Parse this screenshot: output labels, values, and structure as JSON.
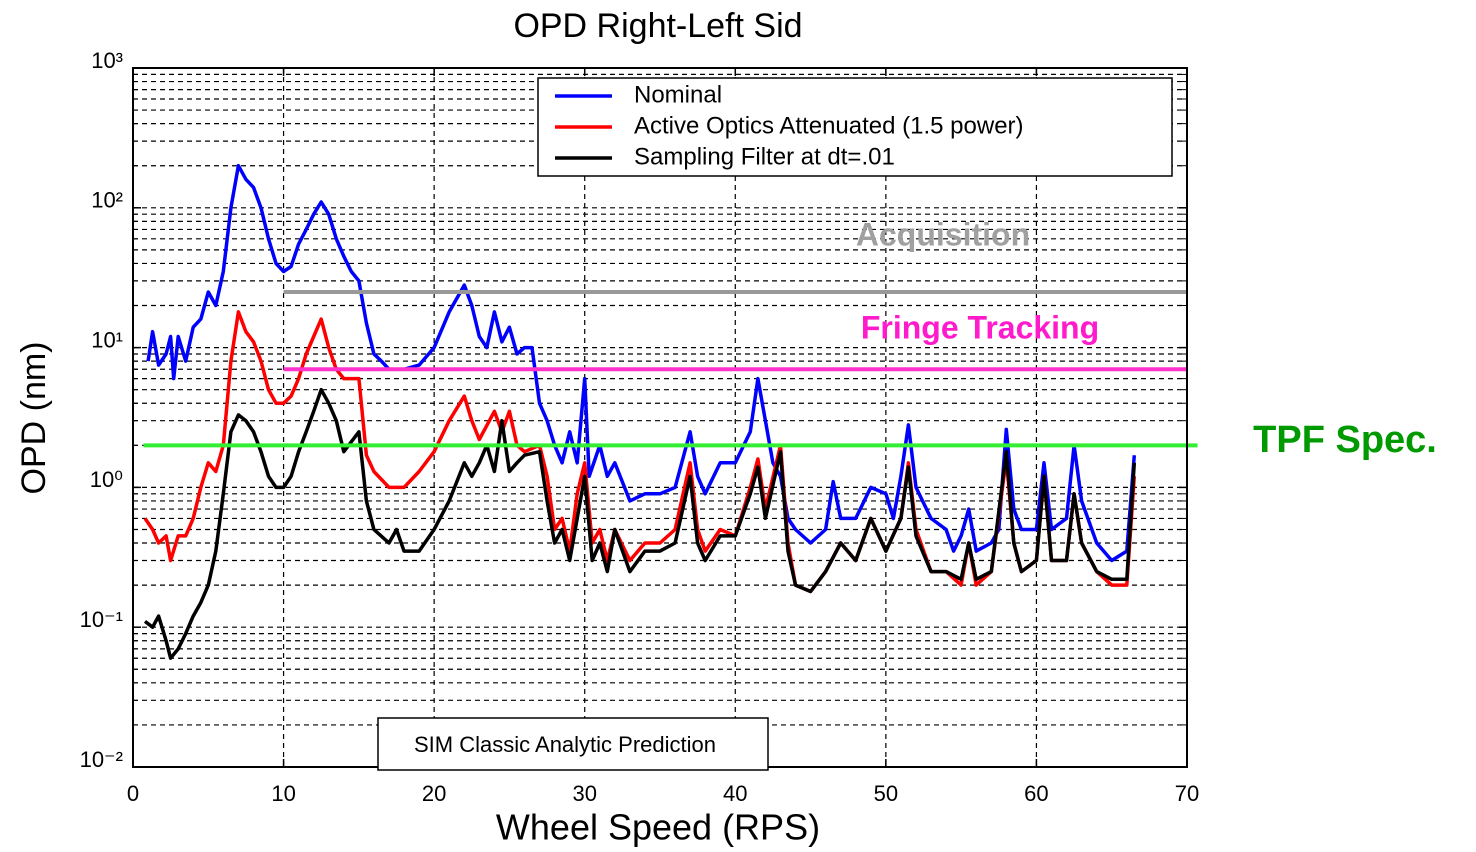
{
  "chart_data": {
    "type": "line",
    "title": "OPD Right-Left Sid",
    "xlabel": "Wheel Speed (RPS)",
    "ylabel": "OPD (nm)",
    "xlim": [
      0,
      70
    ],
    "xticks": [
      0,
      10,
      20,
      30,
      40,
      50,
      60,
      70
    ],
    "ylim": [
      0.01,
      1000
    ],
    "yscale": "log",
    "yticks": [
      {
        "value": 0.01,
        "label": "10⁻²"
      },
      {
        "value": 0.1,
        "label": "10⁻¹"
      },
      {
        "value": 1,
        "label": "10⁰"
      },
      {
        "value": 10,
        "label": "10¹"
      },
      {
        "value": 100,
        "label": "10²"
      },
      {
        "value": 1000,
        "label": "10³"
      }
    ],
    "grid": true,
    "minor_grid": true,
    "legend": "upper right",
    "annotation": "SIM Classic Analytic Prediction",
    "reference_lines": [
      {
        "label": "Acquisition",
        "value": 25,
        "x": [
          10,
          70
        ],
        "color": "#999999",
        "label_color": "#a0a0a0"
      },
      {
        "label": "Fringe Tracking",
        "value": 7,
        "x": [
          10,
          70
        ],
        "color": "#ff33cc",
        "label_color": "#ff1acc"
      },
      {
        "label": "TPF Spec.",
        "value": 2,
        "x": [
          0.7,
          70.7
        ],
        "color": "#33ee33",
        "label_color": "#009900"
      }
    ],
    "series": [
      {
        "name": "Nominal",
        "color": "#0000ff",
        "x": [
          1,
          1.3,
          1.7,
          2.2,
          2.5,
          2.7,
          3,
          3.5,
          4,
          4.5,
          5,
          5.5,
          6,
          6.5,
          7,
          7.5,
          8,
          8.5,
          9,
          9.5,
          10,
          10.5,
          11,
          11.5,
          12,
          12.5,
          13,
          13.5,
          14,
          14.5,
          15,
          15.5,
          16,
          16.5,
          17,
          18,
          19,
          20,
          21,
          22,
          22.5,
          23,
          23.5,
          24,
          24.5,
          25,
          25.5,
          26,
          26.5,
          27,
          27.5,
          28,
          28.5,
          29,
          29.5,
          30,
          30.3,
          31,
          31.5,
          32,
          33,
          34,
          35,
          36,
          37,
          37.5,
          38,
          39,
          40,
          41,
          41.5,
          42,
          42.5,
          43,
          43.5,
          44,
          45,
          46,
          46.5,
          47,
          48,
          49,
          50,
          50.5,
          51,
          51.5,
          52,
          53,
          54,
          54.5,
          55,
          55.5,
          56,
          57,
          57.5,
          58,
          58.5,
          59,
          60,
          60.5,
          61,
          62,
          62.5,
          63,
          64,
          65,
          66,
          66.5
        ],
        "values": [
          8,
          13,
          7.5,
          9,
          12,
          6,
          12,
          8,
          14,
          16,
          25,
          20,
          35,
          100,
          200,
          160,
          140,
          100,
          60,
          40,
          35,
          38,
          55,
          70,
          90,
          110,
          90,
          60,
          45,
          35,
          30,
          15,
          9,
          8,
          7,
          7,
          7.5,
          10,
          18,
          28,
          20,
          12,
          10,
          18,
          11,
          14,
          9,
          10,
          10,
          4,
          3,
          2,
          1.5,
          2.5,
          1.5,
          6,
          1.2,
          2,
          1.2,
          1.5,
          0.8,
          0.9,
          0.9,
          1.0,
          2.5,
          1.2,
          0.9,
          1.5,
          1.5,
          2.5,
          6,
          3,
          1.5,
          1.2,
          0.6,
          0.5,
          0.4,
          0.5,
          1.1,
          0.6,
          0.6,
          1,
          0.9,
          0.6,
          1.2,
          2.8,
          1.0,
          0.6,
          0.5,
          0.35,
          0.45,
          0.7,
          0.35,
          0.4,
          0.5,
          2.6,
          0.7,
          0.5,
          0.5,
          1.5,
          0.5,
          0.6,
          2.0,
          0.8,
          0.4,
          0.3,
          0.35,
          1.7
        ]
      },
      {
        "name": "Active Optics Attenuated (1.5 power)",
        "color": "#ff0000",
        "x": [
          0.8,
          1.3,
          1.7,
          2.2,
          2.5,
          3,
          3.5,
          4,
          4.5,
          5,
          5.5,
          6,
          6.5,
          7,
          7.5,
          8,
          8.5,
          9,
          9.5,
          10,
          10.5,
          11,
          11.5,
          12,
          12.5,
          13,
          13.5,
          14,
          15,
          15.5,
          16,
          17,
          18,
          19,
          20,
          21,
          22,
          22.5,
          23,
          24,
          24.5,
          25,
          25.5,
          26,
          27,
          27.5,
          28,
          28.5,
          29,
          29.5,
          30,
          30.5,
          31,
          31.5,
          32,
          33,
          34,
          35,
          36,
          37,
          37.5,
          38,
          39,
          40,
          41,
          41.5,
          42,
          43,
          43.5,
          44,
          45,
          46,
          47,
          48,
          49,
          50,
          51,
          51.5,
          52,
          53,
          54,
          55,
          55.5,
          56,
          57,
          58,
          58.5,
          59,
          60,
          60.5,
          61,
          62,
          62.5,
          63,
          64,
          65,
          66,
          66.5
        ],
        "values": [
          0.6,
          0.5,
          0.4,
          0.45,
          0.3,
          0.45,
          0.45,
          0.6,
          1.0,
          1.5,
          1.3,
          2,
          8,
          18,
          13,
          11,
          8,
          5,
          4,
          4,
          4.5,
          6,
          9,
          12,
          16,
          10,
          7,
          6,
          6,
          1.7,
          1.3,
          1,
          1,
          1.3,
          1.8,
          3,
          4.5,
          3,
          2.2,
          3.5,
          2.5,
          3.5,
          2,
          1.8,
          2,
          1.2,
          0.5,
          0.6,
          0.35,
          0.9,
          1.5,
          0.4,
          0.5,
          0.3,
          0.5,
          0.3,
          0.4,
          0.4,
          0.5,
          1.5,
          0.5,
          0.35,
          0.5,
          0.45,
          1,
          1.6,
          0.7,
          2,
          0.4,
          0.2,
          0.18,
          0.25,
          0.4,
          0.3,
          0.6,
          0.35,
          0.6,
          1.5,
          0.5,
          0.25,
          0.25,
          0.2,
          0.4,
          0.2,
          0.25,
          1.6,
          0.4,
          0.25,
          0.3,
          1.2,
          0.3,
          0.3,
          0.9,
          0.4,
          0.25,
          0.2,
          0.2,
          1.2
        ]
      },
      {
        "name": "Sampling Filter at dt=.01",
        "color": "#000000",
        "x": [
          0.8,
          1.3,
          1.7,
          2.2,
          2.5,
          3,
          3.5,
          4,
          4.5,
          5,
          5.5,
          6,
          6.5,
          7,
          7.5,
          8,
          8.5,
          9,
          9.5,
          10,
          10.5,
          11,
          11.5,
          12,
          12.5,
          13,
          13.5,
          14,
          15,
          15.5,
          16,
          17,
          17.5,
          18,
          19,
          20,
          21,
          22,
          22.5,
          23,
          23.5,
          24,
          24.5,
          25,
          25.5,
          26,
          27,
          27.5,
          28,
          28.5,
          29,
          29.5,
          30,
          30.5,
          31,
          31.5,
          32,
          33,
          34,
          35,
          36,
          37,
          37.5,
          38,
          39,
          40,
          41,
          41.5,
          42,
          43,
          43.5,
          44,
          45,
          46,
          47,
          48,
          49,
          50,
          51,
          51.5,
          52,
          53,
          54,
          55,
          55.5,
          56,
          57,
          58,
          58.5,
          59,
          60,
          60.5,
          61,
          62,
          62.5,
          63,
          64,
          65,
          66,
          66.5
        ],
        "values": [
          0.11,
          0.1,
          0.12,
          0.08,
          0.06,
          0.07,
          0.09,
          0.12,
          0.15,
          0.2,
          0.35,
          0.9,
          2.5,
          3.3,
          3,
          2.5,
          1.8,
          1.2,
          1.0,
          1.0,
          1.2,
          1.8,
          2.5,
          3.5,
          5,
          4,
          3,
          1.8,
          2.5,
          0.8,
          0.5,
          0.4,
          0.5,
          0.35,
          0.35,
          0.5,
          0.8,
          1.5,
          1.2,
          1.5,
          2,
          1.3,
          3,
          1.3,
          1.5,
          1.7,
          1.8,
          0.8,
          0.4,
          0.5,
          0.3,
          0.6,
          1.2,
          0.3,
          0.4,
          0.25,
          0.5,
          0.25,
          0.35,
          0.35,
          0.4,
          1.2,
          0.4,
          0.3,
          0.45,
          0.45,
          0.9,
          1.4,
          0.6,
          1.8,
          0.35,
          0.2,
          0.18,
          0.25,
          0.4,
          0.3,
          0.6,
          0.35,
          0.6,
          1.4,
          0.45,
          0.25,
          0.25,
          0.22,
          0.4,
          0.22,
          0.25,
          1.8,
          0.4,
          0.25,
          0.3,
          1.2,
          0.3,
          0.3,
          0.9,
          0.4,
          0.25,
          0.22,
          0.22,
          1.5
        ]
      }
    ]
  }
}
